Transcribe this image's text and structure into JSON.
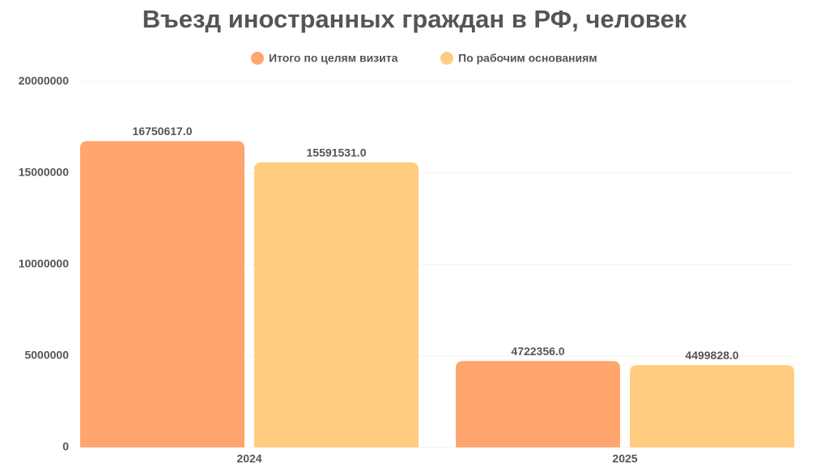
{
  "chart_data": {
    "type": "bar",
    "title": "Въезд иностранных граждан в РФ, человек",
    "categories": [
      "2024",
      "2025"
    ],
    "series": [
      {
        "name": "Итого по целям визита",
        "color": "#ffa66f",
        "values": [
          16750617,
          4722356
        ],
        "value_labels": [
          "16750617.0",
          "4722356.0"
        ]
      },
      {
        "name": "По рабочим основаниям",
        "color": "#ffcc80",
        "values": [
          15591531,
          4499828
        ],
        "value_labels": [
          "15591531.0",
          "4499828.0"
        ]
      }
    ],
    "ylim": [
      0,
      20000000
    ],
    "yticks": [
      0,
      5000000,
      10000000,
      15000000,
      20000000
    ],
    "grid": true
  }
}
